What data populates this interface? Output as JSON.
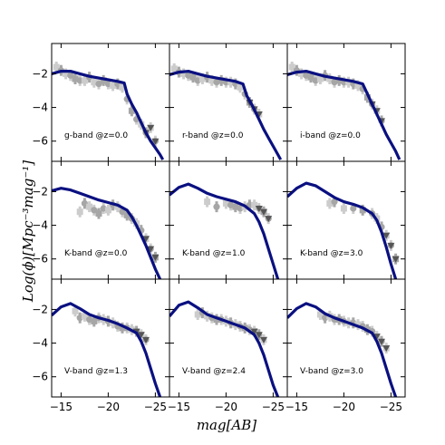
{
  "figure": {
    "xlabel": "mag[AB]",
    "ylabel": "Log(ϕ)[Mpc⁻³mag⁻¹]",
    "colors": {
      "model": "#0a1080",
      "data_light": "#cccccc",
      "data_mid": "#a6a6a6",
      "data_dark": "#555555"
    }
  },
  "chart_data": [
    {
      "type": "line",
      "panel": "g-band @z=0.0",
      "xlim": [
        -14,
        -26.5
      ],
      "ylim": [
        -7.2,
        -0.2
      ],
      "xticks": [
        -15,
        -20,
        -25
      ],
      "yticks": [
        -2,
        -4,
        -6
      ],
      "series": [
        {
          "role": "model",
          "x": [
            -14,
            -15,
            -16,
            -17,
            -18,
            -19,
            -20,
            -21,
            -21.7,
            -22,
            -22.5,
            -23,
            -23.5,
            -24,
            -24.5,
            -25,
            -25.5,
            -25.8
          ],
          "y": [
            -2.0,
            -1.85,
            -1.85,
            -2.0,
            -2.15,
            -2.25,
            -2.35,
            -2.45,
            -2.55,
            -3.2,
            -3.8,
            -4.3,
            -4.9,
            -5.5,
            -6.0,
            -6.4,
            -6.8,
            -7.1
          ]
        },
        {
          "role": "observed",
          "x": [
            -14.5,
            -15,
            -15.5,
            -16,
            -16.5,
            -17,
            -17.5,
            -18,
            -18.5,
            -19,
            -19.5,
            -20,
            -20.5,
            -21,
            -21.5,
            -22,
            -22.5,
            -23,
            -23.5,
            -24,
            -24.5,
            -25
          ],
          "y": [
            -1.6,
            -1.8,
            -2.0,
            -2.1,
            -2.3,
            -2.4,
            -2.4,
            -2.2,
            -2.5,
            -2.6,
            -2.4,
            -2.6,
            -2.7,
            -2.6,
            -2.8,
            -3.5,
            -4.2,
            -4.7,
            -5.0,
            -5.5,
            -5.2,
            -6.0
          ]
        }
      ]
    },
    {
      "type": "line",
      "panel": "r-band @z=0.0",
      "xlim": [
        -14,
        -26.5
      ],
      "ylim": [
        -7.2,
        -0.2
      ],
      "xticks": [
        -15,
        -20,
        -25
      ],
      "yticks": [
        -2,
        -4,
        -6
      ],
      "series": [
        {
          "role": "model",
          "x": [
            -14,
            -15,
            -16,
            -17,
            -18,
            -19,
            -20,
            -21,
            -21.8,
            -22.2,
            -22.8,
            -23.4,
            -24,
            -24.6,
            -25.2,
            -25.8
          ],
          "y": [
            -2.05,
            -1.9,
            -1.85,
            -2.0,
            -2.15,
            -2.25,
            -2.35,
            -2.45,
            -2.6,
            -3.3,
            -3.9,
            -4.6,
            -5.3,
            -5.9,
            -6.5,
            -7.1
          ]
        },
        {
          "role": "observed",
          "x": [
            -14.5,
            -15,
            -15.5,
            -16,
            -16.5,
            -17,
            -17.5,
            -18,
            -18.5,
            -19,
            -19.5,
            -20,
            -20.5,
            -21,
            -21.5,
            -22,
            -22.5,
            -23,
            -23.5
          ],
          "y": [
            -1.7,
            -1.9,
            -2.0,
            -2.1,
            -2.2,
            -2.4,
            -2.3,
            -2.2,
            -2.4,
            -2.5,
            -2.4,
            -2.5,
            -2.5,
            -2.6,
            -2.8,
            -3.2,
            -3.7,
            -4.1,
            -4.4
          ]
        }
      ]
    },
    {
      "type": "line",
      "panel": "i-band @z=0.0",
      "xlim": [
        -14,
        -26.5
      ],
      "ylim": [
        -7.2,
        -0.2
      ],
      "xticks": [
        -15,
        -20,
        -25
      ],
      "yticks": [
        -2,
        -4,
        -6
      ],
      "series": [
        {
          "role": "model",
          "x": [
            -14,
            -15,
            -16,
            -17,
            -18,
            -19,
            -20,
            -21,
            -22,
            -22.5,
            -23,
            -23.5,
            -24,
            -24.5,
            -25,
            -25.5,
            -25.9
          ],
          "y": [
            -2.05,
            -1.9,
            -1.85,
            -2.0,
            -2.15,
            -2.25,
            -2.35,
            -2.45,
            -2.6,
            -3.2,
            -3.8,
            -4.4,
            -5.0,
            -5.6,
            -6.1,
            -6.6,
            -7.1
          ]
        },
        {
          "role": "observed",
          "x": [
            -14.5,
            -15,
            -15.5,
            -16,
            -16.5,
            -17,
            -17.5,
            -18,
            -18.5,
            -19,
            -19.5,
            -20,
            -20.5,
            -21,
            -21.5,
            -22,
            -22.5,
            -23,
            -23.5,
            -24
          ],
          "y": [
            -1.6,
            -1.8,
            -2.0,
            -2.1,
            -2.2,
            -2.4,
            -2.3,
            -2.1,
            -2.3,
            -2.5,
            -2.4,
            -2.5,
            -2.5,
            -2.6,
            -2.7,
            -2.9,
            -3.4,
            -3.8,
            -4.2,
            -4.8
          ]
        }
      ]
    },
    {
      "type": "line",
      "panel": "K-band @z=0.0",
      "xlim": [
        -14,
        -26.5
      ],
      "ylim": [
        -7.2,
        -0.2
      ],
      "xticks": [
        -15,
        -20,
        -25
      ],
      "yticks": [
        -2,
        -4,
        -6
      ],
      "series": [
        {
          "role": "model",
          "x": [
            -14,
            -15,
            -16,
            -17,
            -18,
            -19,
            -20,
            -21,
            -22,
            -22.5,
            -23,
            -23.5,
            -24,
            -24.5,
            -25,
            -25.5
          ],
          "y": [
            -1.95,
            -1.8,
            -1.9,
            -2.1,
            -2.3,
            -2.5,
            -2.65,
            -2.8,
            -3.1,
            -3.5,
            -4.0,
            -4.6,
            -5.2,
            -5.9,
            -6.6,
            -7.2
          ]
        },
        {
          "role": "observed",
          "x": [
            -17,
            -17.5,
            -18,
            -18.5,
            -19,
            -19.5,
            -20,
            -20.5,
            -21,
            -21.5,
            -22,
            -22.5,
            -23,
            -23.5,
            -24,
            -24.5,
            -25
          ],
          "y": [
            -3.2,
            -2.7,
            -2.9,
            -3.1,
            -3.3,
            -3.0,
            -3.1,
            -2.8,
            -2.9,
            -3.2,
            -3.4,
            -3.6,
            -3.9,
            -4.3,
            -4.8,
            -5.4,
            -5.9
          ]
        }
      ]
    },
    {
      "type": "line",
      "panel": "K-band @z=1.0",
      "xlim": [
        -14,
        -26.5
      ],
      "ylim": [
        -7.2,
        -0.2
      ],
      "xticks": [
        -15,
        -20,
        -25
      ],
      "yticks": [
        -2,
        -4,
        -6
      ],
      "series": [
        {
          "role": "model",
          "x": [
            -14,
            -15,
            -16,
            -17,
            -18,
            -19,
            -20,
            -21,
            -22,
            -23,
            -23.5,
            -24,
            -24.5,
            -25,
            -25.5
          ],
          "y": [
            -2.2,
            -1.75,
            -1.55,
            -1.8,
            -2.1,
            -2.3,
            -2.45,
            -2.6,
            -2.85,
            -3.3,
            -3.8,
            -4.5,
            -5.4,
            -6.3,
            -7.2
          ]
        },
        {
          "role": "observed",
          "x": [
            -18,
            -19,
            -20,
            -20.5,
            -21,
            -21.5,
            -22,
            -22.5,
            -23,
            -23.5,
            -24,
            -24.5
          ],
          "y": [
            -2.6,
            -2.9,
            -2.7,
            -2.8,
            -2.9,
            -3.0,
            -2.9,
            -2.8,
            -2.8,
            -3.0,
            -3.2,
            -3.6
          ]
        }
      ]
    },
    {
      "type": "line",
      "panel": "K-band @z=3.0",
      "xlim": [
        -14,
        -26.5
      ],
      "ylim": [
        -7.2,
        -0.2
      ],
      "xticks": [
        -15,
        -20,
        -25
      ],
      "yticks": [
        -2,
        -4,
        -6
      ],
      "series": [
        {
          "role": "model",
          "x": [
            -14,
            -15,
            -16,
            -17,
            -18,
            -19,
            -20,
            -21,
            -22,
            -23,
            -23.5,
            -24,
            -24.5,
            -25,
            -25.5
          ],
          "y": [
            -2.3,
            -1.8,
            -1.5,
            -1.65,
            -2.0,
            -2.35,
            -2.6,
            -2.75,
            -2.95,
            -3.3,
            -3.7,
            -4.4,
            -5.3,
            -6.3,
            -7.2
          ]
        },
        {
          "role": "observed",
          "x": [
            -18.5,
            -19,
            -20,
            -21,
            -22,
            -23,
            -23.5,
            -24,
            -24.5,
            -25,
            -25.5
          ],
          "y": [
            -2.7,
            -2.6,
            -3.0,
            -3.0,
            -3.1,
            -3.3,
            -3.6,
            -4.1,
            -4.6,
            -5.2,
            -6.0
          ]
        }
      ]
    },
    {
      "type": "line",
      "panel": "V-band @z=1.3",
      "xlim": [
        -14,
        -26.5
      ],
      "ylim": [
        -7.2,
        -0.2
      ],
      "xticks": [
        -15,
        -20,
        -25
      ],
      "yticks": [
        -2,
        -4,
        -6
      ],
      "series": [
        {
          "role": "model",
          "x": [
            -14,
            -15,
            -16,
            -17,
            -18,
            -19,
            -20,
            -21,
            -22,
            -23,
            -23.5,
            -24,
            -24.5,
            -25,
            -25.5
          ],
          "y": [
            -2.35,
            -1.85,
            -1.65,
            -1.95,
            -2.3,
            -2.5,
            -2.65,
            -2.85,
            -3.1,
            -3.4,
            -3.9,
            -4.6,
            -5.5,
            -6.4,
            -7.2
          ]
        },
        {
          "role": "observed",
          "x": [
            -16.5,
            -17,
            -17.5,
            -18,
            -18.5,
            -19,
            -19.5,
            -20,
            -20.5,
            -21,
            -21.5,
            -22,
            -22.5,
            -23,
            -23.5,
            -24
          ],
          "y": [
            -2.1,
            -2.5,
            -2.4,
            -2.6,
            -2.7,
            -2.5,
            -2.6,
            -2.7,
            -2.8,
            -3.0,
            -3.1,
            -3.1,
            -3.2,
            -3.3,
            -3.5,
            -3.8
          ]
        }
      ]
    },
    {
      "type": "line",
      "panel": "V-band @z=2.4",
      "xlim": [
        -14,
        -26.5
      ],
      "ylim": [
        -7.2,
        -0.2
      ],
      "xticks": [
        -15,
        -20,
        -25
      ],
      "yticks": [
        -2,
        -4,
        -6
      ],
      "series": [
        {
          "role": "model",
          "x": [
            -14,
            -15,
            -16,
            -17,
            -18,
            -19,
            -20,
            -21,
            -22,
            -23,
            -23.5,
            -24,
            -24.5,
            -25,
            -25.5
          ],
          "y": [
            -2.4,
            -1.75,
            -1.55,
            -1.9,
            -2.3,
            -2.5,
            -2.7,
            -2.9,
            -3.1,
            -3.5,
            -4.0,
            -4.7,
            -5.6,
            -6.5,
            -7.2
          ]
        },
        {
          "role": "observed",
          "x": [
            -17,
            -17.5,
            -18,
            -18.5,
            -19,
            -19.5,
            -20,
            -20.5,
            -21,
            -21.5,
            -22,
            -22.5,
            -23,
            -23.5,
            -24
          ],
          "y": [
            -2.3,
            -2.2,
            -2.4,
            -2.5,
            -2.6,
            -2.6,
            -2.7,
            -2.8,
            -2.9,
            -3.0,
            -3.1,
            -3.2,
            -3.3,
            -3.5,
            -3.8
          ]
        }
      ]
    },
    {
      "type": "line",
      "panel": "V-band @z=3.0",
      "xlim": [
        -14,
        -26.5
      ],
      "ylim": [
        -7.2,
        -0.2
      ],
      "xticks": [
        -15,
        -20,
        -25
      ],
      "yticks": [
        -2,
        -4,
        -6
      ],
      "series": [
        {
          "role": "model",
          "x": [
            -14,
            -15,
            -16,
            -17,
            -18,
            -19,
            -20,
            -21,
            -22,
            -23,
            -23.5,
            -24,
            -24.5,
            -25,
            -25.5
          ],
          "y": [
            -2.5,
            -1.95,
            -1.65,
            -1.85,
            -2.25,
            -2.5,
            -2.7,
            -2.9,
            -3.1,
            -3.4,
            -3.9,
            -4.6,
            -5.5,
            -6.4,
            -7.2
          ]
        },
        {
          "role": "observed",
          "x": [
            -17.5,
            -18,
            -18.5,
            -19,
            -19.5,
            -20,
            -20.5,
            -21,
            -21.5,
            -22,
            -22.5,
            -23,
            -23.5,
            -24,
            -24.5
          ],
          "y": [
            -2.3,
            -2.5,
            -2.4,
            -2.6,
            -2.6,
            -2.7,
            -2.8,
            -2.8,
            -2.9,
            -3.0,
            -3.2,
            -3.3,
            -3.6,
            -3.9,
            -4.3
          ]
        }
      ]
    }
  ]
}
